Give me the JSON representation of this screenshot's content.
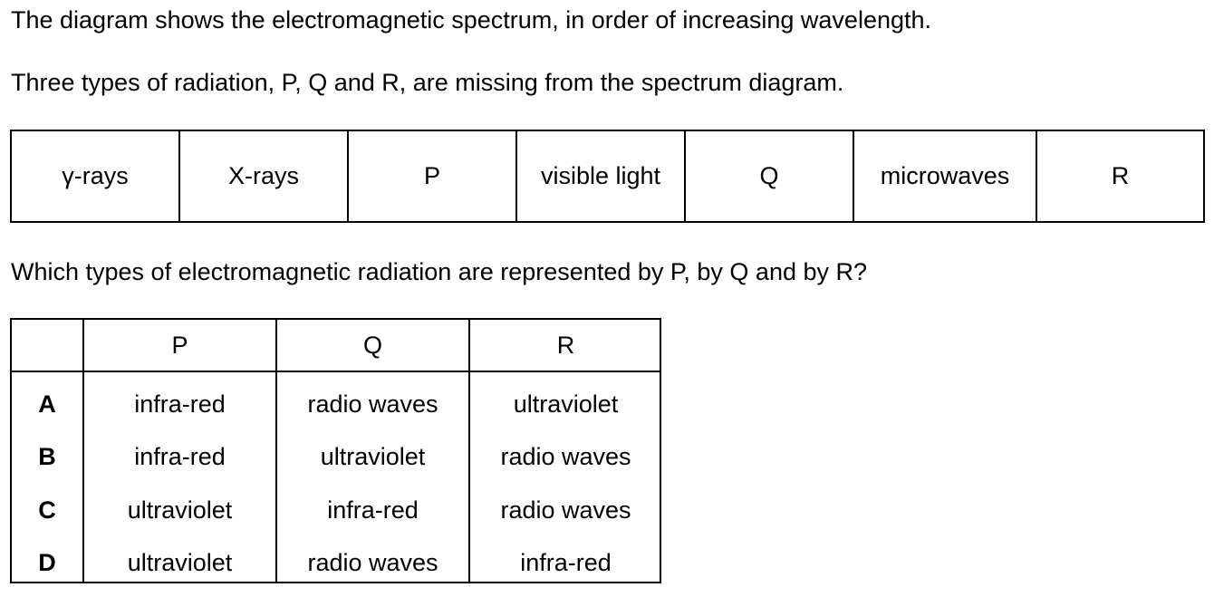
{
  "intro": {
    "line1": "The diagram shows the electromagnetic spectrum, in order of increasing wavelength.",
    "line2": "Three types of radiation, P, Q and R, are missing from the spectrum diagram."
  },
  "spectrum": {
    "cells": [
      "γ-rays",
      "X-rays",
      "P",
      "visible light",
      "Q",
      "microwaves",
      "R"
    ]
  },
  "question": "Which types of electromagnetic radiation are represented by P, by Q and by R?",
  "options_table": {
    "headers": [
      "",
      "P",
      "Q",
      "R"
    ],
    "rows": [
      {
        "letter": "A",
        "p": "infra-red",
        "q": "radio waves",
        "r": "ultraviolet"
      },
      {
        "letter": "B",
        "p": "infra-red",
        "q": "ultraviolet",
        "r": "radio waves"
      },
      {
        "letter": "C",
        "p": "ultraviolet",
        "q": "infra-red",
        "r": "radio waves"
      },
      {
        "letter": "D",
        "p": "ultraviolet",
        "q": "radio waves",
        "r": "infra-red"
      }
    ]
  }
}
